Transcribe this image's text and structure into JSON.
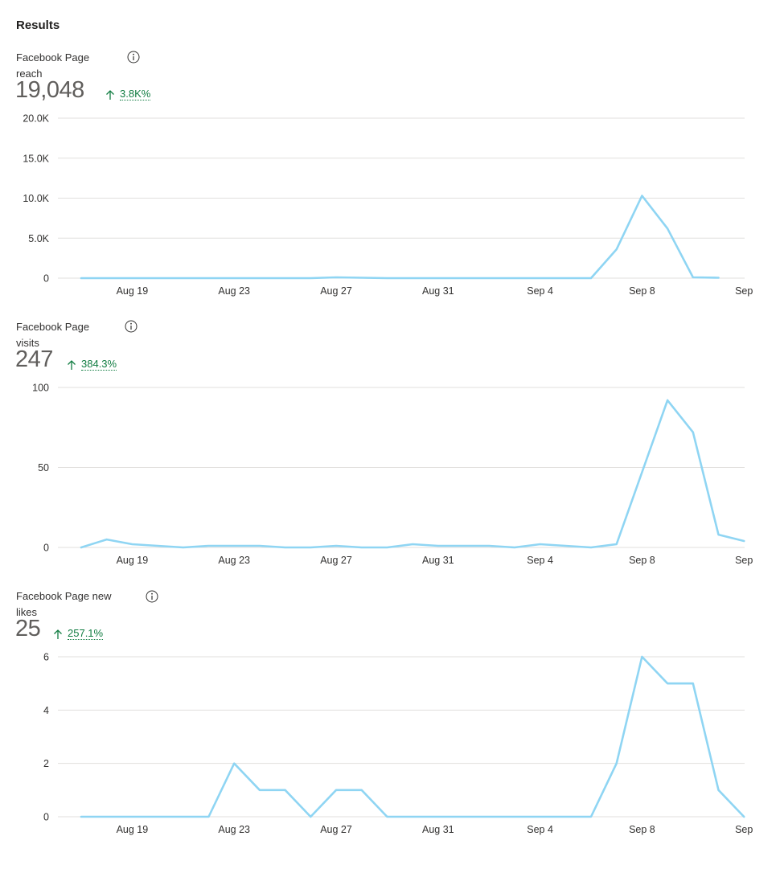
{
  "page": {
    "title": "Results"
  },
  "metrics": [
    {
      "label_line1": "Facebook Page",
      "label_line2": "reach",
      "value": "19,048",
      "trend": "3.8K%"
    },
    {
      "label_line1": "Facebook Page",
      "label_line2": "visits",
      "value": "247",
      "trend": "384.3%"
    },
    {
      "label_line1": "Facebook Page new",
      "label_line2": "likes",
      "value": "25",
      "trend": "257.1%"
    }
  ],
  "colors": {
    "series": "#8fd5f3",
    "trend_up": "#107c41",
    "grid": "#e1dfdd"
  },
  "icons": {
    "info": "info-circle-icon",
    "trend": "arrow-up-icon"
  },
  "chart_data": [
    {
      "type": "line",
      "x_tick_labels": [
        "Aug 19",
        "Aug 23",
        "Aug 27",
        "Aug 31",
        "Sep 4",
        "Sep 8",
        "Sep"
      ],
      "x_tick_days": [
        2,
        6,
        10,
        14,
        18,
        22,
        26
      ],
      "y_tick_labels": [
        "0",
        "5.0K",
        "10.0K",
        "15.0K",
        "20.0K"
      ],
      "y_tick_values": [
        0,
        5000,
        10000,
        15000,
        20000
      ],
      "ylim": [
        0,
        20000
      ],
      "grid": true,
      "series": [
        {
          "values": [
            0,
            0,
            0,
            0,
            0,
            0,
            0,
            0,
            0,
            0,
            100,
            50,
            0,
            0,
            0,
            0,
            0,
            0,
            0,
            0,
            0,
            3600,
            10300,
            6200,
            100,
            50
          ]
        }
      ]
    },
    {
      "type": "line",
      "x_tick_labels": [
        "Aug 19",
        "Aug 23",
        "Aug 27",
        "Aug 31",
        "Sep 4",
        "Sep 8",
        "Sep"
      ],
      "x_tick_days": [
        2,
        6,
        10,
        14,
        18,
        22,
        26
      ],
      "y_tick_labels": [
        "0",
        "50",
        "100"
      ],
      "y_tick_values": [
        0,
        50,
        100
      ],
      "ylim": [
        0,
        100
      ],
      "grid": true,
      "series": [
        {
          "values": [
            0,
            5,
            2,
            1,
            0,
            1,
            1,
            1,
            0,
            0,
            1,
            0,
            0,
            2,
            1,
            1,
            1,
            0,
            2,
            1,
            0,
            2,
            47,
            92,
            72,
            8,
            4
          ]
        }
      ]
    },
    {
      "type": "line",
      "x_tick_labels": [
        "Aug 19",
        "Aug 23",
        "Aug 27",
        "Aug 31",
        "Sep 4",
        "Sep 8",
        "Sep"
      ],
      "x_tick_days": [
        2,
        6,
        10,
        14,
        18,
        22,
        26
      ],
      "y_tick_labels": [
        "0",
        "2",
        "4",
        "6"
      ],
      "y_tick_values": [
        0,
        2,
        4,
        6
      ],
      "ylim": [
        0,
        6
      ],
      "grid": true,
      "series": [
        {
          "values": [
            0,
            0,
            0,
            0,
            0,
            0,
            2,
            1,
            1,
            0,
            1,
            1,
            0,
            0,
            0,
            0,
            0,
            0,
            0,
            0,
            0,
            2,
            6,
            5,
            5,
            1,
            0
          ]
        }
      ]
    }
  ]
}
